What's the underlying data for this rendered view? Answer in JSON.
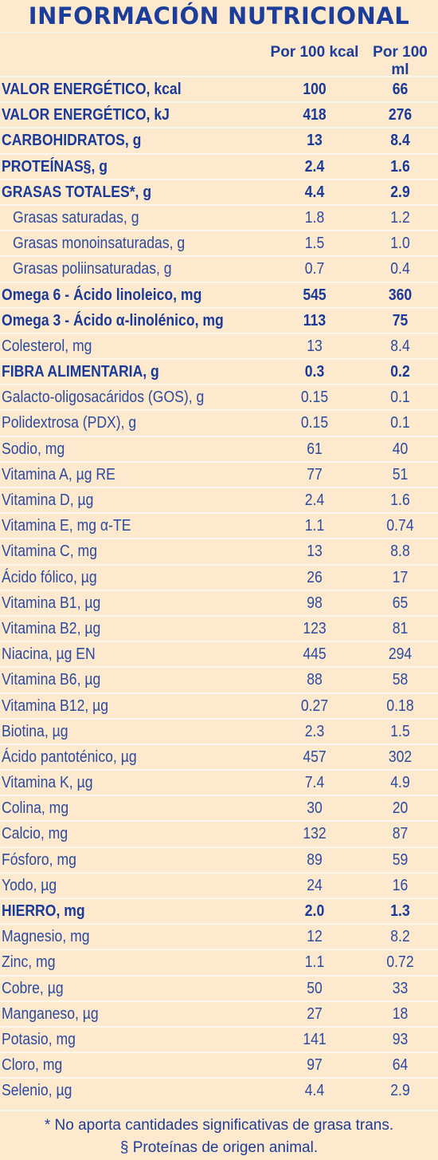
{
  "title": "INFORMACIÓN NUTRICIONAL",
  "columns": [
    "Por 100 kcal",
    "Por 100 ml"
  ],
  "rows": [
    {
      "label": "VALOR ENERGÉTICO, kcal",
      "v1": "100",
      "v2": "66",
      "bold": true
    },
    {
      "label": "VALOR ENERGÉTICO, kJ",
      "v1": "418",
      "v2": "276",
      "bold": true
    },
    {
      "label": "CARBOHIDRATOS, g",
      "v1": "13",
      "v2": "8.4",
      "bold": true
    },
    {
      "label": "PROTEÍNAS§, g",
      "v1": "2.4",
      "v2": "1.6",
      "bold": true
    },
    {
      "label": "GRASAS TOTALES*, g",
      "v1": "4.4",
      "v2": "2.9",
      "bold": true
    },
    {
      "label": "Grasas saturadas, g",
      "v1": "1.8",
      "v2": "1.2",
      "sub": true
    },
    {
      "label": "Grasas monoinsaturadas, g",
      "v1": "1.5",
      "v2": "1.0",
      "sub": true
    },
    {
      "label": "Grasas poliinsaturadas, g",
      "v1": "0.7",
      "v2": "0.4",
      "sub": true
    },
    {
      "label": "Omega 6 - Ácido linoleico, mg",
      "v1": "545",
      "v2": "360",
      "bold": true
    },
    {
      "label": "Omega 3 - Ácido α-linolénico, mg",
      "v1": "113",
      "v2": "75",
      "bold": true
    },
    {
      "label": "Colesterol, mg",
      "v1": "13",
      "v2": "8.4"
    },
    {
      "label": "FIBRA ALIMENTARIA, g",
      "v1": "0.3",
      "v2": "0.2",
      "bold": true
    },
    {
      "label": "Galacto-oligosacáridos (GOS), g",
      "v1": "0.15",
      "v2": "0.1"
    },
    {
      "label": "Polidextrosa (PDX), g",
      "v1": "0.15",
      "v2": "0.1"
    },
    {
      "label": "Sodio, mg",
      "v1": "61",
      "v2": "40"
    },
    {
      "label": "Vitamina A, µg RE",
      "v1": "77",
      "v2": "51"
    },
    {
      "label": "Vitamina D, µg",
      "v1": "2.4",
      "v2": "1.6"
    },
    {
      "label": "Vitamina E, mg α-TE",
      "v1": "1.1",
      "v2": "0.74"
    },
    {
      "label": "Vitamina C, mg",
      "v1": "13",
      "v2": "8.8"
    },
    {
      "label": "Ácido fólico, µg",
      "v1": "26",
      "v2": "17"
    },
    {
      "label": "Vitamina B1, µg",
      "v1": "98",
      "v2": "65"
    },
    {
      "label": "Vitamina B2, µg",
      "v1": "123",
      "v2": "81"
    },
    {
      "label": "Niacina, µg EN",
      "v1": "445",
      "v2": "294"
    },
    {
      "label": "Vitamina B6, µg",
      "v1": "88",
      "v2": "58"
    },
    {
      "label": "Vitamina B12, µg",
      "v1": "0.27",
      "v2": "0.18"
    },
    {
      "label": "Biotina, µg",
      "v1": "2.3",
      "v2": "1.5"
    },
    {
      "label": "Ácido pantoténico, µg",
      "v1": "457",
      "v2": "302"
    },
    {
      "label": "Vitamina K, µg",
      "v1": "7.4",
      "v2": "4.9"
    },
    {
      "label": "Colina, mg",
      "v1": "30",
      "v2": "20"
    },
    {
      "label": "Calcio, mg",
      "v1": "132",
      "v2": "87"
    },
    {
      "label": "Fósforo, mg",
      "v1": "89",
      "v2": "59"
    },
    {
      "label": "Yodo, µg",
      "v1": "24",
      "v2": "16"
    },
    {
      "label": "HIERRO, mg",
      "v1": "2.0",
      "v2": "1.3",
      "bold": true
    },
    {
      "label": "Magnesio, mg",
      "v1": "12",
      "v2": "8.2"
    },
    {
      "label": "Zinc, mg",
      "v1": "1.1",
      "v2": "0.72"
    },
    {
      "label": "Cobre, µg",
      "v1": "50",
      "v2": "33"
    },
    {
      "label": "Manganeso, µg",
      "v1": "27",
      "v2": "18"
    },
    {
      "label": "Potasio, mg",
      "v1": "141",
      "v2": "93"
    },
    {
      "label": "Cloro, mg",
      "v1": "97",
      "v2": "64"
    },
    {
      "label": "Selenio, µg",
      "v1": "4.4",
      "v2": "2.9"
    }
  ],
  "footnotes": [
    "* No aporta cantidades significativas de grasa trans.",
    "§ Proteínas de origen animal."
  ],
  "colors": {
    "background": "#fde9cd",
    "text": "#1d3d9a",
    "rule": "#fbf6ee"
  }
}
